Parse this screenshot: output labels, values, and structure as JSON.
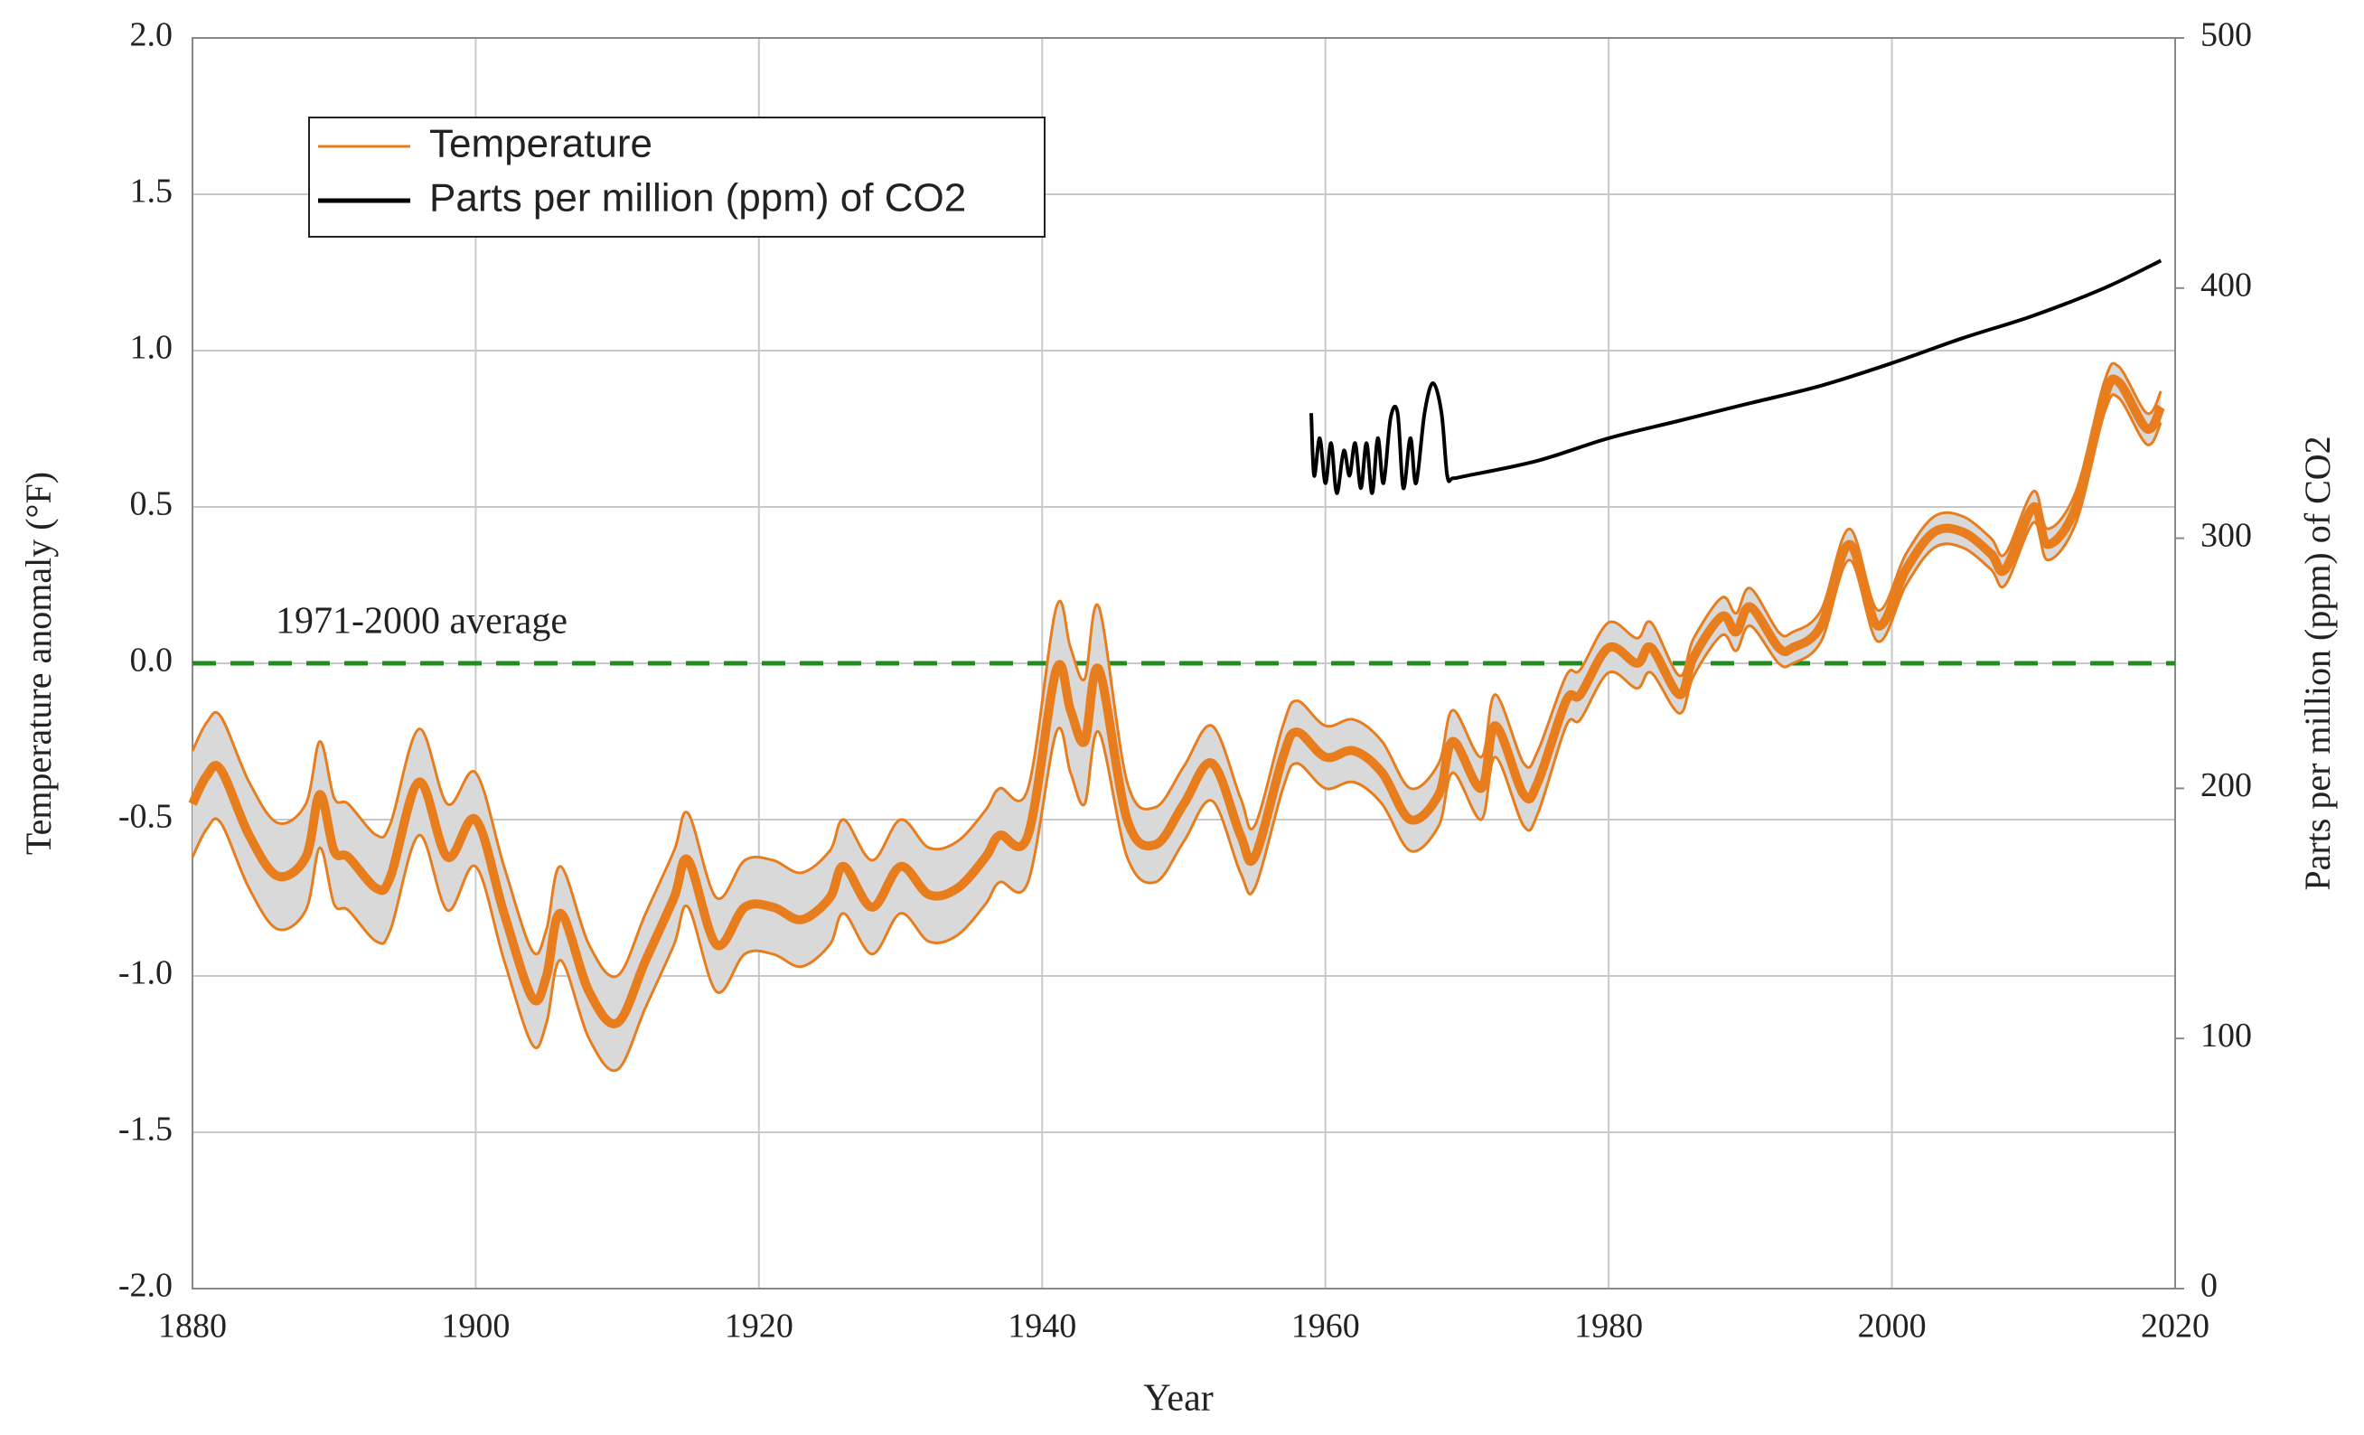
{
  "chart_data": {
    "type": "line",
    "xlabel": "Year",
    "ylabel": "Temperature anomaly (°F)",
    "y2label": "Parts per million (ppm) of CO2",
    "xlim": [
      1880,
      2020
    ],
    "xticks": [
      1880,
      1900,
      1920,
      1940,
      1960,
      1980,
      2000,
      2020
    ],
    "ylim": [
      -2,
      2
    ],
    "yticks": [
      {
        "value": -2,
        "label": "-2.0"
      },
      {
        "value": -1.5,
        "label": "-1.5"
      },
      {
        "value": -1,
        "label": "-1.0"
      },
      {
        "value": -0.5,
        "label": "-0.5"
      },
      {
        "value": 0,
        "label": "0.0"
      },
      {
        "value": 0.5,
        "label": "0.5"
      },
      {
        "value": 1,
        "label": "1.0"
      },
      {
        "value": 1.5,
        "label": "1.5"
      },
      {
        "value": 2,
        "label": "2.0"
      }
    ],
    "y2lim": [
      0,
      500
    ],
    "y2ticks": [
      0,
      100,
      200,
      300,
      400,
      500
    ],
    "grid": true,
    "legend": "upper left",
    "reference": {
      "value": 0,
      "label": "1971-2000 average",
      "color": "#1e8c1e"
    },
    "x": [
      1880,
      1881,
      1882,
      1884,
      1886,
      1888,
      1889,
      1890,
      1891,
      1893,
      1894,
      1896,
      1898,
      1900,
      1902,
      1904,
      1905,
      1906,
      1908,
      1910,
      1912,
      1914,
      1915,
      1917,
      1919,
      1921,
      1923,
      1925,
      1926,
      1928,
      1930,
      1932,
      1934,
      1936,
      1937,
      1939,
      1941,
      1942,
      1943,
      1944,
      1946,
      1948,
      1950,
      1952,
      1954,
      1955,
      1957,
      1958,
      1960,
      1962,
      1964,
      1966,
      1968,
      1969,
      1971,
      1972,
      1974,
      1975,
      1977,
      1978,
      1980,
      1982,
      1983,
      1985,
      1986,
      1988,
      1989,
      1990,
      1992,
      1993,
      1995,
      1997,
      1999,
      2001,
      2003,
      2005,
      2007,
      2008,
      2010,
      2011,
      2013,
      2015,
      2016,
      2018,
      2019
    ],
    "series": [
      {
        "name": "Temperature",
        "color": "#e87d1e",
        "band_color": "#d9d9d9",
        "values": [
          -0.45,
          -0.36,
          -0.34,
          -0.55,
          -0.68,
          -0.62,
          -0.42,
          -0.6,
          -0.62,
          -0.72,
          -0.68,
          -0.38,
          -0.62,
          -0.5,
          -0.8,
          -1.07,
          -1.0,
          -0.8,
          -1.05,
          -1.15,
          -0.95,
          -0.75,
          -0.63,
          -0.9,
          -0.78,
          -0.78,
          -0.82,
          -0.75,
          -0.65,
          -0.78,
          -0.65,
          -0.74,
          -0.72,
          -0.62,
          -0.55,
          -0.55,
          -0.02,
          -0.15,
          -0.25,
          -0.02,
          -0.5,
          -0.58,
          -0.45,
          -0.32,
          -0.55,
          -0.62,
          -0.3,
          -0.22,
          -0.3,
          -0.28,
          -0.35,
          -0.5,
          -0.42,
          -0.25,
          -0.4,
          -0.2,
          -0.42,
          -0.38,
          -0.12,
          -0.1,
          0.05,
          0.0,
          0.05,
          -0.1,
          0.02,
          0.15,
          0.1,
          0.18,
          0.05,
          0.05,
          0.12,
          0.38,
          0.12,
          0.3,
          0.42,
          0.42,
          0.35,
          0.3,
          0.5,
          0.38,
          0.5,
          0.85,
          0.9,
          0.75,
          0.82
        ],
        "upper": [
          -0.28,
          -0.19,
          -0.17,
          -0.38,
          -0.51,
          -0.45,
          -0.25,
          -0.43,
          -0.45,
          -0.55,
          -0.51,
          -0.21,
          -0.45,
          -0.35,
          -0.65,
          -0.92,
          -0.85,
          -0.65,
          -0.9,
          -1.0,
          -0.8,
          -0.6,
          -0.48,
          -0.75,
          -0.63,
          -0.63,
          -0.67,
          -0.6,
          -0.5,
          -0.63,
          -0.5,
          -0.59,
          -0.57,
          -0.47,
          -0.4,
          -0.4,
          0.18,
          0.05,
          -0.05,
          0.18,
          -0.38,
          -0.46,
          -0.33,
          -0.2,
          -0.43,
          -0.52,
          -0.2,
          -0.12,
          -0.2,
          -0.18,
          -0.25,
          -0.4,
          -0.32,
          -0.15,
          -0.3,
          -0.1,
          -0.32,
          -0.28,
          -0.04,
          -0.02,
          0.13,
          0.08,
          0.13,
          -0.04,
          0.08,
          0.21,
          0.16,
          0.24,
          0.1,
          0.1,
          0.17,
          0.43,
          0.17,
          0.35,
          0.47,
          0.47,
          0.4,
          0.35,
          0.55,
          0.43,
          0.55,
          0.9,
          0.95,
          0.8,
          0.87
        ],
        "lower": [
          -0.62,
          -0.53,
          -0.51,
          -0.72,
          -0.85,
          -0.79,
          -0.59,
          -0.77,
          -0.79,
          -0.89,
          -0.85,
          -0.55,
          -0.79,
          -0.65,
          -0.95,
          -1.22,
          -1.15,
          -0.95,
          -1.2,
          -1.3,
          -1.1,
          -0.9,
          -0.78,
          -1.05,
          -0.93,
          -0.93,
          -0.97,
          -0.9,
          -0.8,
          -0.93,
          -0.8,
          -0.89,
          -0.87,
          -0.77,
          -0.7,
          -0.7,
          -0.22,
          -0.35,
          -0.45,
          -0.22,
          -0.62,
          -0.7,
          -0.57,
          -0.44,
          -0.67,
          -0.72,
          -0.4,
          -0.32,
          -0.4,
          -0.38,
          -0.45,
          -0.6,
          -0.52,
          -0.35,
          -0.5,
          -0.3,
          -0.52,
          -0.48,
          -0.2,
          -0.18,
          -0.03,
          -0.08,
          -0.03,
          -0.16,
          -0.04,
          0.09,
          0.04,
          0.12,
          0.0,
          0.0,
          0.07,
          0.33,
          0.07,
          0.25,
          0.37,
          0.37,
          0.3,
          0.25,
          0.45,
          0.33,
          0.45,
          0.8,
          0.85,
          0.7,
          0.77
        ]
      },
      {
        "name": "Parts per million (ppm) of CO2",
        "color": "#000000",
        "axis": "y2",
        "x": [
          1959,
          1959.2,
          1959.6,
          1960,
          1960.4,
          1960.8,
          1961.3,
          1961.7,
          1962.1,
          1962.5,
          1962.9,
          1963.3,
          1963.7,
          1964.1,
          1964.6,
          1965.1,
          1965.5,
          1966,
          1966.4,
          1967,
          1967.6,
          1968.2,
          1968.6,
          1969,
          1970,
          1975,
          1980,
          1985,
          1990,
          1995,
          2000,
          2005,
          2010,
          2015,
          2019
        ],
        "values": [
          350,
          325,
          340,
          322,
          338,
          318,
          335,
          325,
          338,
          320,
          338,
          318,
          340,
          322,
          348,
          350,
          320,
          340,
          322,
          350,
          362,
          350,
          325,
          324,
          325,
          331,
          340,
          347,
          354,
          361,
          370,
          380,
          389,
          400,
          411
        ]
      }
    ]
  }
}
